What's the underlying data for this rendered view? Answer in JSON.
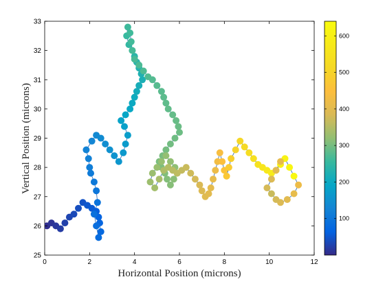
{
  "chart_data": {
    "type": "scatter",
    "title": "",
    "xlabel": "Horizontal Position (microns)",
    "ylabel": "Vertical Position (microns)",
    "xlim": [
      0,
      12
    ],
    "ylim": [
      25,
      33
    ],
    "xticks": [
      "0",
      "2",
      "4",
      "6",
      "8",
      "10",
      "12"
    ],
    "yticks": [
      "25",
      "26",
      "27",
      "28",
      "29",
      "30",
      "31",
      "32",
      "33"
    ],
    "colorbar": {
      "range": [
        0,
        640
      ],
      "ticks": [
        "100",
        "200",
        "300",
        "400",
        "500",
        "600"
      ],
      "colormap": "parula"
    },
    "line_color": "#1f5fb0",
    "series": [
      {
        "x": [
          0.1,
          0.3,
          0.5,
          0.7,
          0.9,
          1.1,
          1.3,
          1.5,
          1.7,
          1.9,
          2.1,
          2.3,
          2.4,
          2.45,
          2.5,
          2.4,
          2.3,
          2.2,
          2.35,
          2.3,
          2.2,
          2.05,
          2.0,
          1.95,
          1.85,
          2.1,
          2.3,
          2.5,
          2.7,
          2.9,
          3.1,
          3.3,
          3.5,
          3.6,
          3.7,
          3.55,
          3.4,
          3.6,
          3.8,
          3.9,
          4.0,
          4.1,
          4.2,
          4.35,
          4.3,
          4.2,
          4.1,
          4.0,
          3.9,
          3.75,
          3.65,
          3.7,
          3.8,
          3.85,
          3.9,
          4.0,
          4.2,
          4.4,
          4.6,
          4.8,
          5.0,
          5.2,
          5.3,
          5.4,
          5.5,
          5.7,
          5.85,
          5.95,
          6.0,
          5.8,
          5.6,
          5.4,
          5.25,
          5.1,
          5.2,
          5.35,
          5.45,
          5.6,
          5.75,
          5.9,
          5.8,
          5.6,
          5.4,
          5.2,
          5.0,
          4.8,
          4.7,
          4.9,
          5.1,
          5.3,
          5.5,
          5.7,
          5.9,
          6.1,
          6.3,
          6.5,
          6.7,
          6.9,
          7.0,
          7.15,
          7.3,
          7.4,
          7.5,
          7.6,
          7.7,
          7.8,
          7.9,
          8.0,
          8.1,
          8.2,
          8.3,
          8.5,
          8.7,
          8.9,
          9.1,
          9.3,
          9.5,
          9.7,
          9.9,
          10.1,
          10.3,
          10.5,
          10.7,
          10.9,
          11.1,
          11.3,
          11.1,
          10.8,
          10.5,
          10.3,
          10.1,
          9.9,
          10.1,
          10.3,
          10.5
        ],
        "y": [
          26.0,
          26.1,
          26.0,
          25.9,
          26.1,
          26.3,
          26.4,
          26.6,
          26.8,
          26.7,
          26.6,
          26.5,
          26.3,
          26.1,
          25.8,
          25.6,
          26.0,
          26.4,
          26.8,
          27.2,
          27.5,
          27.8,
          28.0,
          28.3,
          28.6,
          28.9,
          29.1,
          29.0,
          28.8,
          28.6,
          28.4,
          28.2,
          28.5,
          28.8,
          29.1,
          29.4,
          29.6,
          29.8,
          30.0,
          30.2,
          30.4,
          30.6,
          30.8,
          31.0,
          31.2,
          31.4,
          31.6,
          31.8,
          32.0,
          32.2,
          32.5,
          32.8,
          32.6,
          32.3,
          32.0,
          31.7,
          31.5,
          31.3,
          31.1,
          31.0,
          30.8,
          30.6,
          30.4,
          30.2,
          30.0,
          29.8,
          29.6,
          29.4,
          29.2,
          29.0,
          28.8,
          28.6,
          28.4,
          28.2,
          28.0,
          27.8,
          27.6,
          27.4,
          27.6,
          27.8,
          28.0,
          28.2,
          28.4,
          28.2,
          28.0,
          27.8,
          27.5,
          27.3,
          27.6,
          27.9,
          28.0,
          27.9,
          27.8,
          27.9,
          28.0,
          27.8,
          27.6,
          27.4,
          27.2,
          27.0,
          27.1,
          27.3,
          27.6,
          27.9,
          28.2,
          28.5,
          28.2,
          27.9,
          27.7,
          28.0,
          28.3,
          28.6,
          28.9,
          28.7,
          28.5,
          28.3,
          28.1,
          28.0,
          27.9,
          27.8,
          27.9,
          28.1,
          28.3,
          28.0,
          27.7,
          27.4,
          27.1,
          26.9,
          26.8,
          26.9,
          27.1,
          27.3,
          27.6,
          27.9,
          28.2
        ],
        "t": [
          5,
          10,
          15,
          20,
          25,
          30,
          35,
          40,
          45,
          50,
          55,
          60,
          65,
          70,
          75,
          80,
          85,
          90,
          95,
          100,
          105,
          110,
          115,
          120,
          125,
          130,
          135,
          140,
          145,
          150,
          155,
          160,
          165,
          170,
          175,
          180,
          185,
          190,
          195,
          200,
          205,
          210,
          215,
          220,
          225,
          230,
          235,
          240,
          245,
          250,
          255,
          260,
          262,
          264,
          266,
          268,
          270,
          272,
          274,
          276,
          278,
          280,
          282,
          284,
          286,
          288,
          290,
          292,
          294,
          296,
          298,
          300,
          302,
          304,
          306,
          308,
          310,
          312,
          314,
          316,
          318,
          320,
          322,
          324,
          326,
          328,
          330,
          335,
          340,
          345,
          350,
          355,
          360,
          365,
          370,
          375,
          380,
          385,
          390,
          395,
          400,
          405,
          410,
          420,
          430,
          440,
          450,
          460,
          470,
          480,
          490,
          500,
          510,
          520,
          530,
          540,
          550,
          560,
          570,
          580,
          590,
          600,
          610,
          620,
          630,
          420,
          410,
          400,
          390,
          380,
          370,
          380,
          390,
          400,
          410
        ]
      }
    ]
  }
}
